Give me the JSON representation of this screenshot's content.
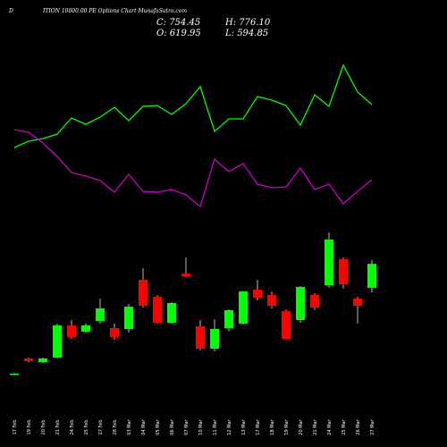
{
  "chart_data": {
    "type": "candlestick",
    "prefix": "D",
    "title": "ITION 10000.00 PE Options Chart MunafaSutra.com",
    "summary_labels": [
      "C: 754.45",
      "H: 776.10",
      "O: 619.95",
      "L: 594.85"
    ],
    "categories": [
      "17 Feb",
      "19 Feb",
      "20 Feb",
      "21 Feb",
      "24 Feb",
      "25 Feb",
      "27 Feb",
      "28 Feb",
      "03 Mar",
      "04 Mar",
      "05 Mar",
      "06 Mar",
      "07 Mar",
      "10 Mar",
      "11 Mar",
      "12 Mar",
      "13 Mar",
      "17 Mar",
      "18 Mar",
      "19 Mar",
      "20 Mar",
      "21 Mar",
      "24 Mar",
      "25 Mar",
      "26 Mar",
      "27 Mar"
    ],
    "open": [
      135,
      225,
      205,
      230,
      410,
      375,
      435,
      395,
      390,
      665,
      570,
      425,
      700,
      405,
      280,
      395,
      420,
      610,
      580,
      490,
      440,
      580,
      635,
      780,
      560,
      619.95
    ],
    "high": [
      142,
      230,
      230,
      420,
      440,
      420,
      560,
      420,
      530,
      730,
      580,
      540,
      790,
      440,
      445,
      500,
      600,
      665,
      600,
      500,
      630,
      590,
      930,
      790,
      570,
      776.1
    ],
    "low": [
      133,
      205,
      200,
      225,
      335,
      370,
      420,
      330,
      370,
      510,
      420,
      420,
      680,
      270,
      265,
      375,
      415,
      550,
      505,
      330,
      425,
      495,
      620,
      615,
      420,
      594.85
    ],
    "close": [
      140,
      210,
      225,
      410,
      345,
      410,
      505,
      345,
      515,
      520,
      425,
      535,
      685,
      280,
      390,
      495,
      600,
      565,
      520,
      335,
      625,
      510,
      890,
      640,
      520,
      754.45
    ],
    "up_color": "#00ff00",
    "down_color": "#ff0000",
    "ylim": [
      80,
      980
    ],
    "indicators": [
      {
        "color": "#00ff00",
        "values": [
          42.5,
          46,
          47.5,
          50,
          59,
          55.5,
          59.5,
          65,
          57.5,
          65.5,
          66,
          61,
          67,
          76.5,
          51.5,
          58.5,
          58.5,
          71,
          69,
          66,
          55,
          72,
          65.5,
          88.5,
          73.5,
          66.5
        ]
      },
      {
        "color": "#cc00cc",
        "values": [
          52.5,
          51,
          45,
          37.5,
          28.5,
          26.5,
          24,
          17.5,
          27.5,
          18,
          17.5,
          19,
          16,
          9.5,
          36,
          29,
          33.5,
          22,
          20,
          20.5,
          31,
          19,
          22,
          11,
          18,
          24.5
        ]
      }
    ],
    "y2lim": [
      0,
      100
    ]
  }
}
